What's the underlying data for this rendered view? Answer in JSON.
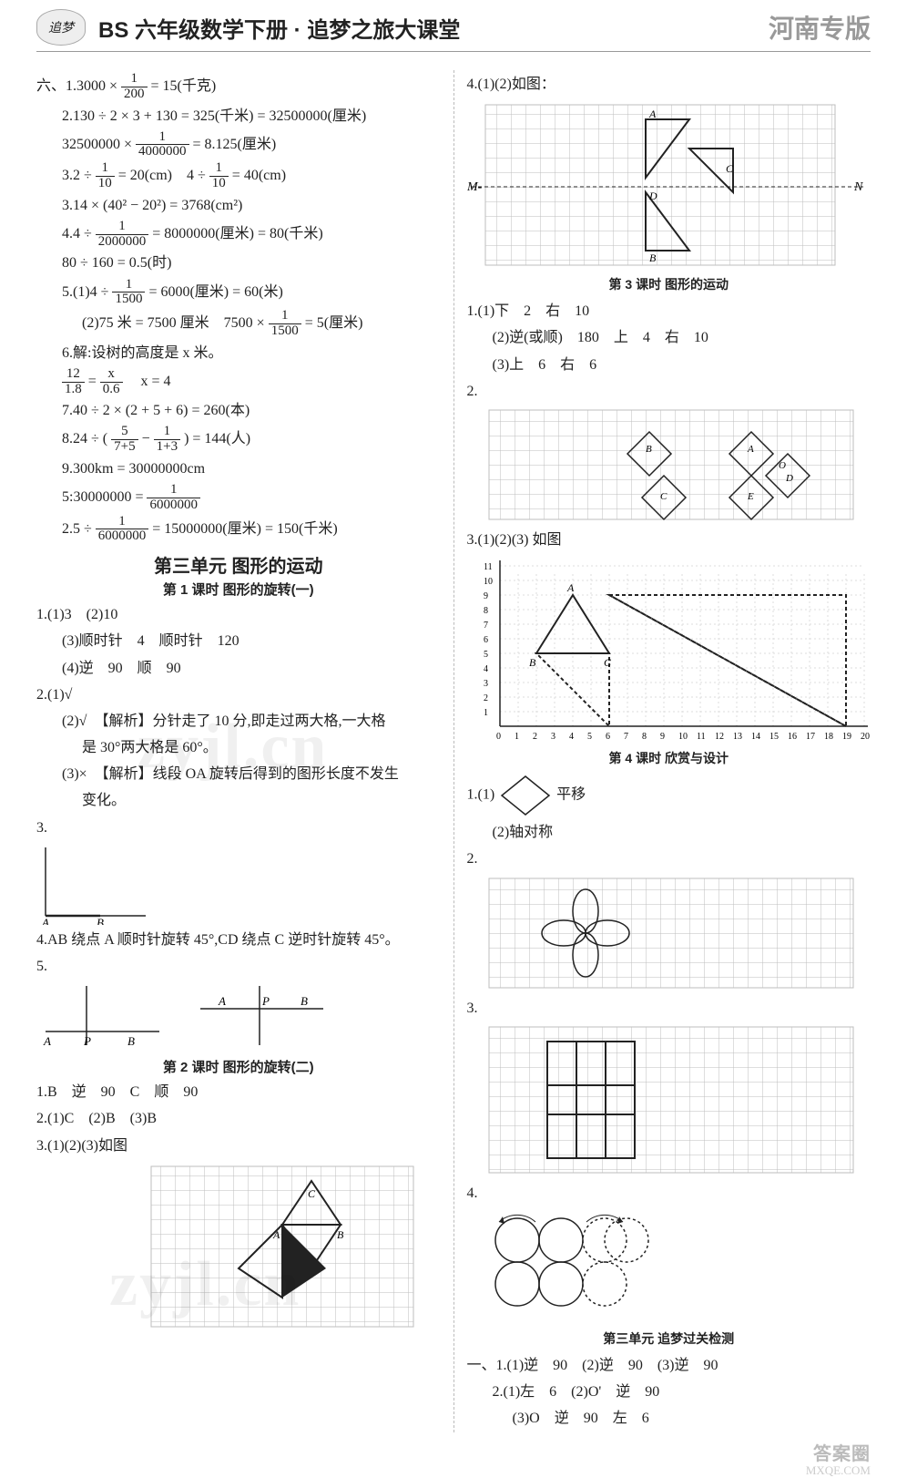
{
  "header": {
    "logo": "追梦",
    "title": "BS 六年级数学下册 · 追梦之旅大课堂",
    "edition": "河南专版"
  },
  "left": {
    "q6_1a": "六、1.3000 ×",
    "frac_1_200": {
      "num": "1",
      "den": "200"
    },
    "q6_1b": "= 15(千克)",
    "q6_2a": "2.130 ÷ 2 × 3 + 130 = 325(千米) = 32500000(厘米)",
    "q6_2b_a": "32500000 ×",
    "frac_1_4000000": {
      "num": "1",
      "den": "4000000"
    },
    "q6_2b_b": "= 8.125(厘米)",
    "q6_3a_a": "3.2 ÷",
    "frac_1_10a": {
      "num": "1",
      "den": "10"
    },
    "q6_3a_b": "= 20(cm)　4 ÷",
    "frac_1_10b": {
      "num": "1",
      "den": "10"
    },
    "q6_3a_c": "= 40(cm)",
    "q6_3b": "3.14 × (40² − 20²) = 3768(cm²)",
    "q6_4a_a": "4.4 ÷",
    "frac_1_2000000": {
      "num": "1",
      "den": "2000000"
    },
    "q6_4a_b": "= 8000000(厘米) = 80(千米)",
    "q6_4b": "80 ÷ 160 = 0.5(时)",
    "q6_5a_a": "5.(1)4 ÷",
    "frac_1_1500a": {
      "num": "1",
      "den": "1500"
    },
    "q6_5a_b": "= 6000(厘米) = 60(米)",
    "q6_5b_a": "(2)75 米 = 7500 厘米　7500 ×",
    "frac_1_1500b": {
      "num": "1",
      "den": "1500"
    },
    "q6_5b_b": "= 5(厘米)",
    "q6_6a": "6.解:设树的高度是 x 米。",
    "frac_12_18": {
      "num": "12",
      "den": "1.8"
    },
    "eq": "=",
    "frac_x_06": {
      "num": "x",
      "den": "0.6"
    },
    "q6_6b": "　x = 4",
    "q6_7": "7.40 ÷ 2 × (2 + 5 + 6) = 260(本)",
    "q6_8a": "8.24 ÷ (",
    "frac_5_12": {
      "num": "5",
      "den": "7+5"
    },
    "minus": "−",
    "frac_1_4": {
      "num": "1",
      "den": "1+3"
    },
    "q6_8b": ") = 144(人)",
    "q6_9a": "9.300km = 30000000cm",
    "q6_9b_a": "5:30000000 =",
    "frac_1_6000000a": {
      "num": "1",
      "den": "6000000"
    },
    "q6_9c_a": "2.5 ÷",
    "frac_1_6000000b": {
      "num": "1",
      "den": "6000000"
    },
    "q6_9c_b": "= 15000000(厘米) = 150(千米)",
    "unit3_title": "第三单元 图形的运动",
    "lesson1": "第 1 课时 图形的旋转(一)",
    "l1_1": "1.(1)3　(2)10",
    "l1_1_3": "(3)顺时针　4　顺时针　120",
    "l1_1_4": "(4)逆　90　顺　90",
    "l1_2_1": "2.(1)√",
    "l1_2_2": "(2)√　【解析】分针走了 10 分,即走过两大格,一大格",
    "l1_2_2b": "是 30°两大格是 60°。",
    "l1_2_3": "(3)×　【解析】线段 OA 旋转后得到的图形长度不发生",
    "l1_2_3b": "变化。",
    "l1_3": "3.",
    "l1_3_labels": {
      "A": "A",
      "B": "B"
    },
    "l1_4": "4.AB 绕点 A 顺时针旋转 45°,CD 绕点 C 逆时针旋转 45°。",
    "l1_5": "5.",
    "l1_5_labels": {
      "A": "A",
      "P": "P",
      "B": "B"
    },
    "lesson2": "第 2 课时 图形的旋转(二)",
    "l2_1": "1.B　逆　90　C　顺　90",
    "l2_2": "2.(1)C　(2)B　(3)B",
    "l2_3": "3.(1)(2)(3)如图",
    "l2_3_labels": {
      "A": "A",
      "B": "B",
      "C": "C"
    }
  },
  "right": {
    "r4": "4.(1)(2)如图：",
    "r4_labels": {
      "M": "M-",
      "N": "N",
      "A": "A",
      "B": "B",
      "C": "C",
      "D": "D"
    },
    "lesson3": "第 3 课时 图形的运动",
    "r_l3_1_1": "1.(1)下　2　右　10",
    "r_l3_1_2": "(2)逆(或顺)　180　上　4　右　10",
    "r_l3_1_3": "(3)上　6　右　6",
    "r_l3_2": "2.",
    "r_l3_2_labels": {
      "A": "A",
      "B": "B",
      "C": "C",
      "D": "D",
      "E": "E",
      "O": "O"
    },
    "r_l3_3": "3.(1)(2)(3) 如图",
    "r_l3_3_labels": {
      "A": "A",
      "B": "B",
      "C": "C"
    },
    "axis_x": [
      "0",
      "1",
      "2",
      "3",
      "4",
      "5",
      "6",
      "7",
      "8",
      "9",
      "10",
      "11",
      "12",
      "13",
      "14",
      "15",
      "16",
      "17",
      "18",
      "19",
      "20"
    ],
    "axis_y": [
      "1",
      "2",
      "3",
      "4",
      "5",
      "6",
      "7",
      "8",
      "9",
      "10",
      "11"
    ],
    "lesson4": "第 4 课时 欣赏与设计",
    "r_l4_1_1": "1.(1)",
    "r_l4_1_1b": "平移",
    "r_l4_1_2": "(2)轴对称",
    "r_l4_2": "2.",
    "r_l4_3": "3.",
    "r_l4_4": "4.",
    "test_title": "第三单元 追梦过关检测",
    "t1_1": "一、1.(1)逆　90　(2)逆　90　(3)逆　90",
    "t1_2": "2.(1)左　6　(2)O'　逆　90",
    "t1_2b": "(3)O　逆　90　左　6"
  },
  "watermarks": {
    "wm1": "zyjl.cn",
    "wm2": "zyjl.cn",
    "footer": "答案圈",
    "footer2": "MXQE.COM"
  },
  "colors": {
    "grid": "#bdbdbd",
    "ink": "#222222",
    "bg": "#ffffff"
  }
}
